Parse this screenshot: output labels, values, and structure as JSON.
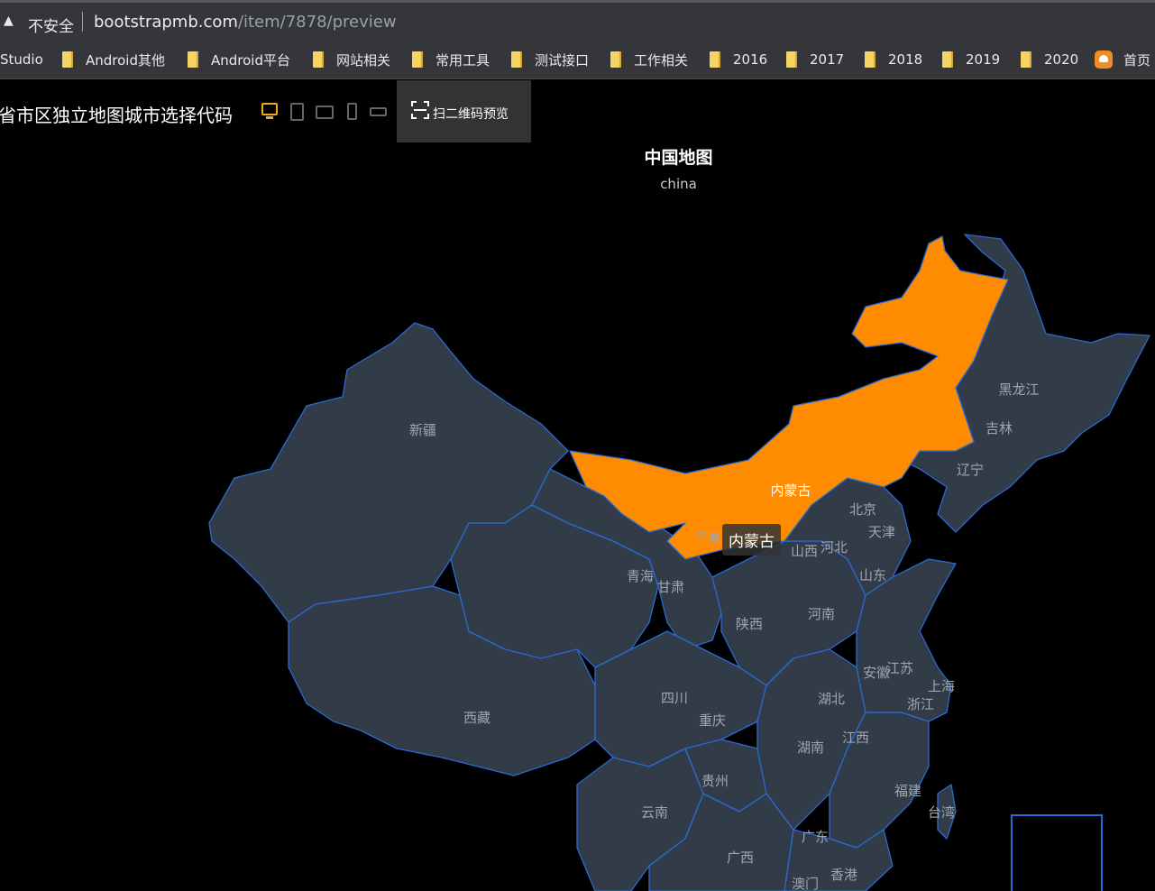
{
  "browser": {
    "security_icon": "warning-triangle-icon",
    "security_text": "不安全",
    "url_host": "bootstrapmb.com",
    "url_path": "/item/7878/preview"
  },
  "bookmarks": [
    {
      "label": "Studio",
      "icon": "none"
    },
    {
      "label": "Android其他",
      "icon": "folder-icon"
    },
    {
      "label": "Android平台",
      "icon": "folder-icon"
    },
    {
      "label": "网站相关",
      "icon": "folder-icon"
    },
    {
      "label": "常用工具",
      "icon": "folder-icon"
    },
    {
      "label": "测试接口",
      "icon": "folder-icon"
    },
    {
      "label": "工作相关",
      "icon": "folder-icon"
    },
    {
      "label": "2016",
      "icon": "folder-icon"
    },
    {
      "label": "2017",
      "icon": "folder-icon"
    },
    {
      "label": "2018",
      "icon": "folder-icon"
    },
    {
      "label": "2019",
      "icon": "folder-icon"
    },
    {
      "label": "2020",
      "icon": "folder-icon"
    },
    {
      "label": "首页",
      "icon": "home-icon"
    }
  ],
  "toolbar": {
    "page_title": "省市区独立地图城市选择代码",
    "devices": [
      "desktop-icon",
      "tablet-icon",
      "tablet-landscape-icon",
      "phone-icon",
      "phone-landscape-icon"
    ],
    "active_device": "desktop-icon",
    "qr_label": "扫二维码预览",
    "accent": "#f5a623"
  },
  "map": {
    "title": "中国地图",
    "subtitle": "china",
    "region_color": "#323b48",
    "border_color": "#2a6bd1",
    "highlight_color": "#ff8c00",
    "highlighted_region": "内蒙古",
    "tooltip": "内蒙古",
    "labels": [
      "新疆",
      "西藏",
      "青海",
      "甘肃",
      "宁夏",
      "内蒙古",
      "黑龙江",
      "吉林",
      "辽宁",
      "北京",
      "天津",
      "河北",
      "山西",
      "山东",
      "陕西",
      "河南",
      "四川",
      "重庆",
      "湖北",
      "安徽",
      "江苏",
      "上海",
      "浙江",
      "湖南",
      "江西",
      "贵州",
      "云南",
      "广西",
      "广东",
      "福建",
      "台湾",
      "香港",
      "澳门"
    ]
  }
}
